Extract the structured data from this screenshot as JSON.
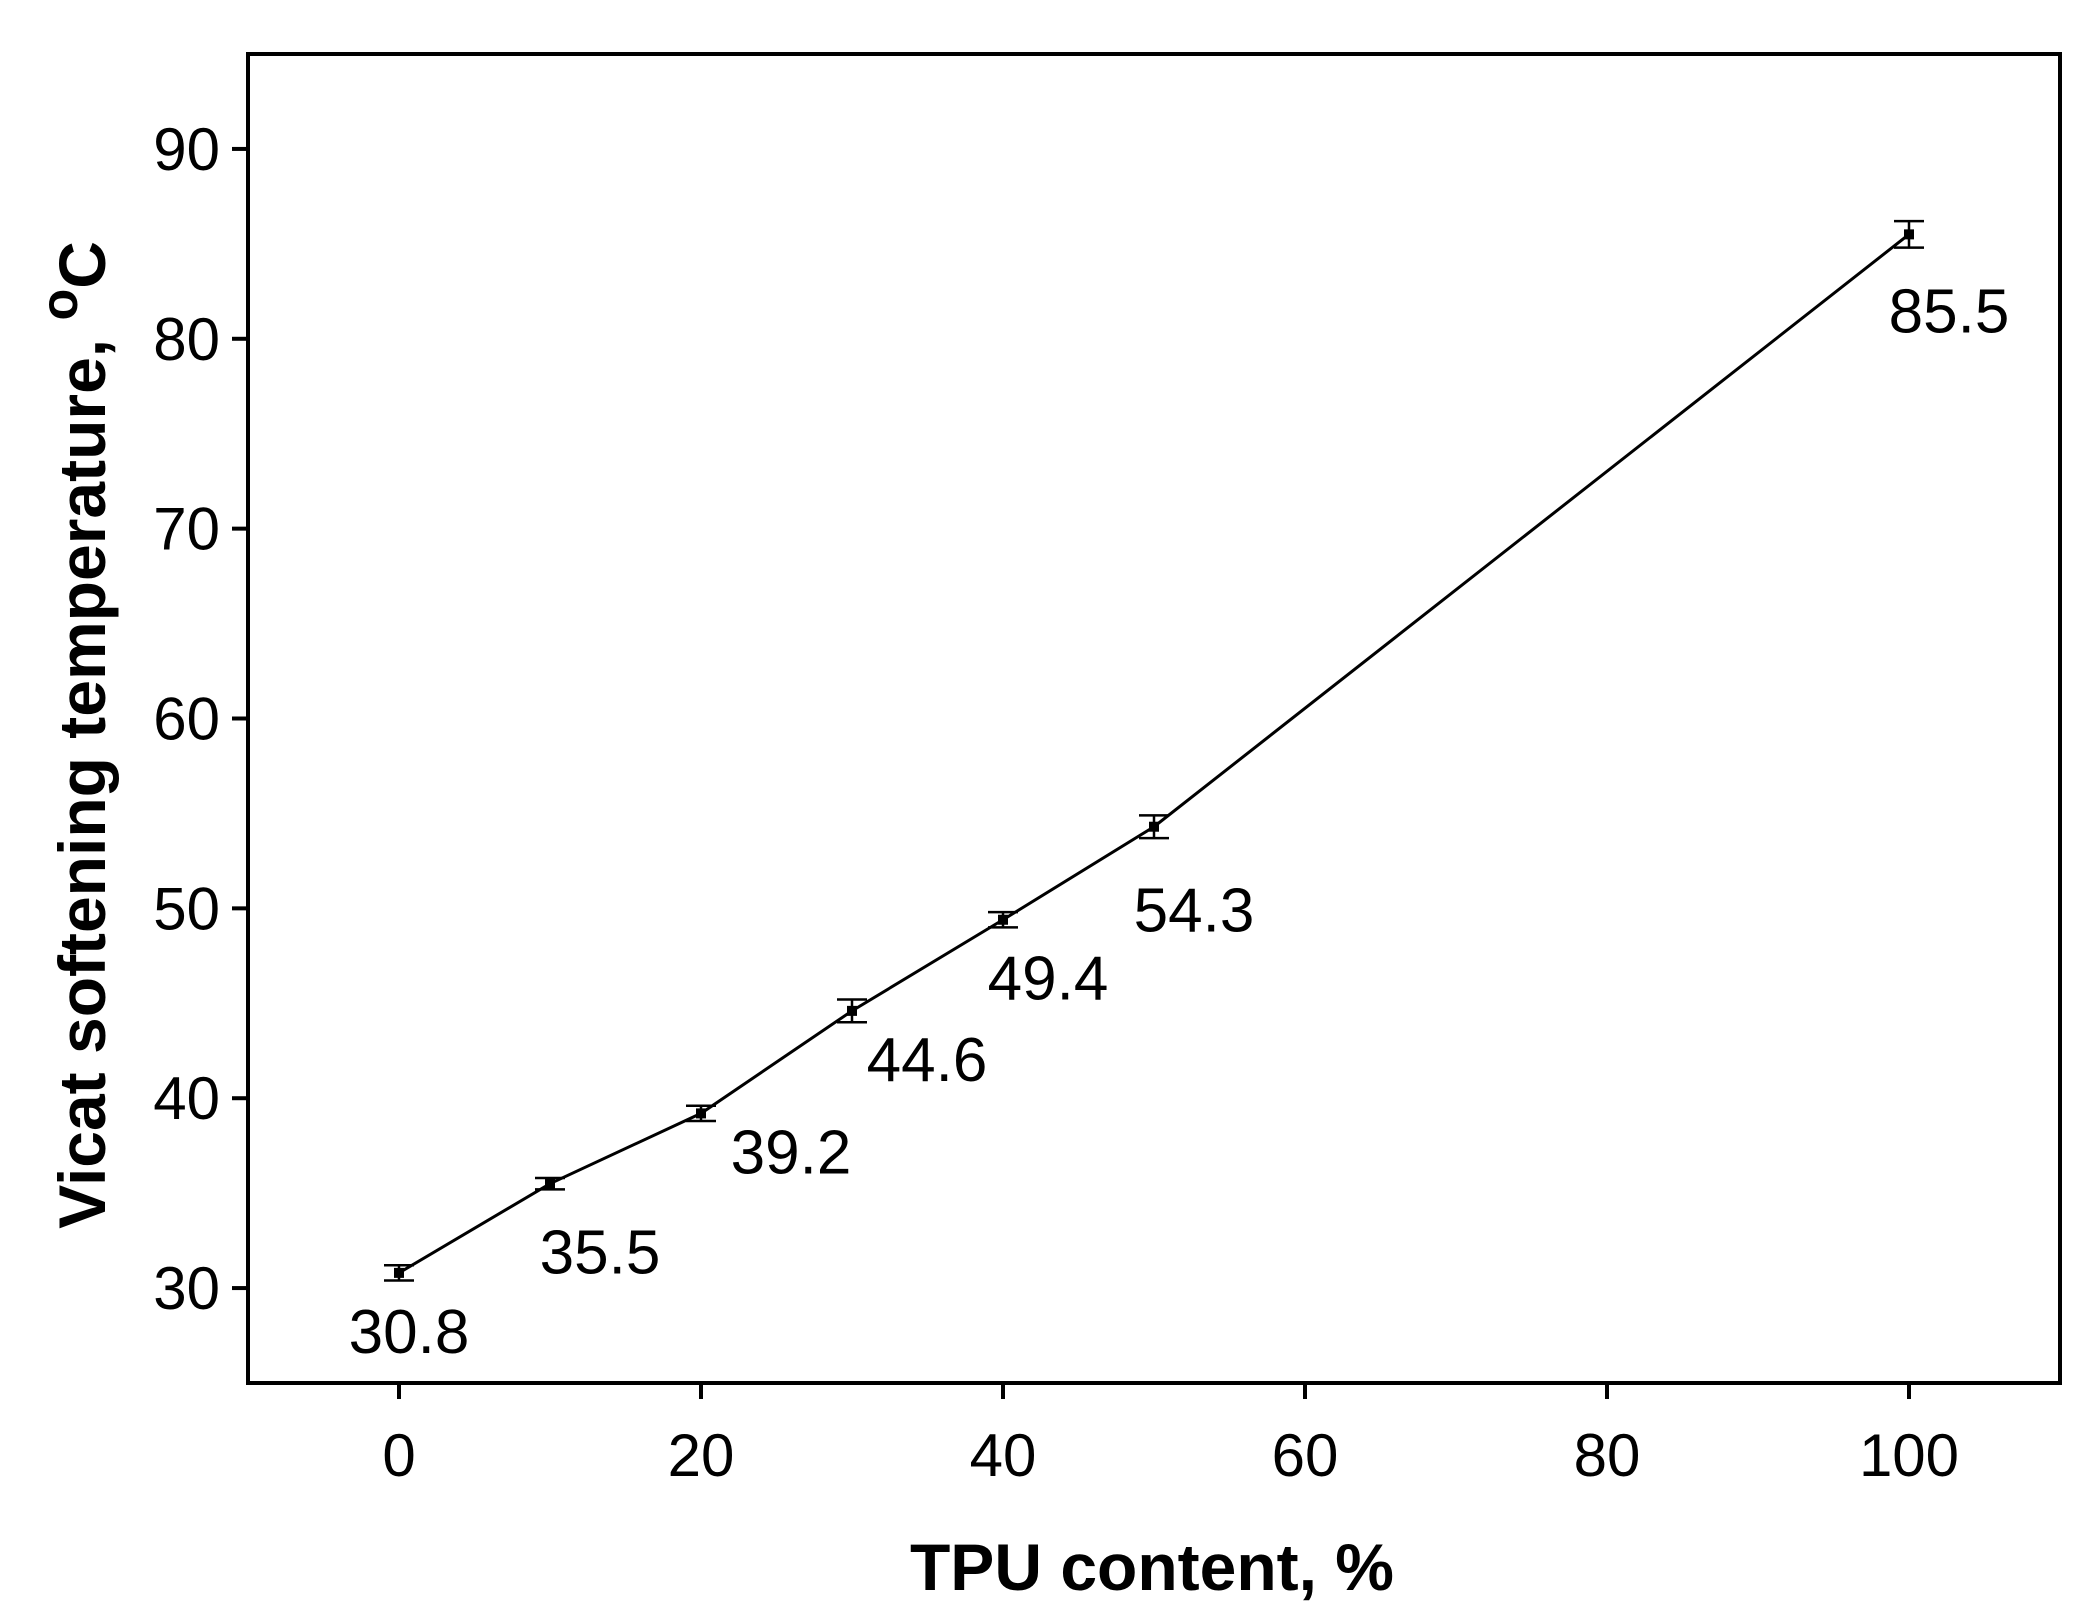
{
  "chart_data": {
    "type": "line",
    "xlabel": "TPU content, %",
    "ylabel": "Vicat softening temperature, ",
    "ylabel_sup": "o",
    "ylabel_unit": "C",
    "x": [
      0,
      10,
      20,
      30,
      40,
      50,
      100
    ],
    "series": [
      {
        "name": "Vicat softening temperature",
        "color": "#000000",
        "values": [
          30.8,
          35.5,
          39.2,
          44.6,
          49.4,
          54.3,
          85.5
        ],
        "errors": [
          0.4,
          0.3,
          0.4,
          0.6,
          0.4,
          0.6,
          0.7
        ]
      }
    ],
    "xlim": [
      -10,
      110
    ],
    "xticks": [
      0,
      20,
      40,
      60,
      80,
      100
    ],
    "ylim": [
      25,
      95
    ],
    "yticks": [
      30,
      40,
      50,
      60,
      70,
      80,
      90
    ],
    "grid": false
  }
}
